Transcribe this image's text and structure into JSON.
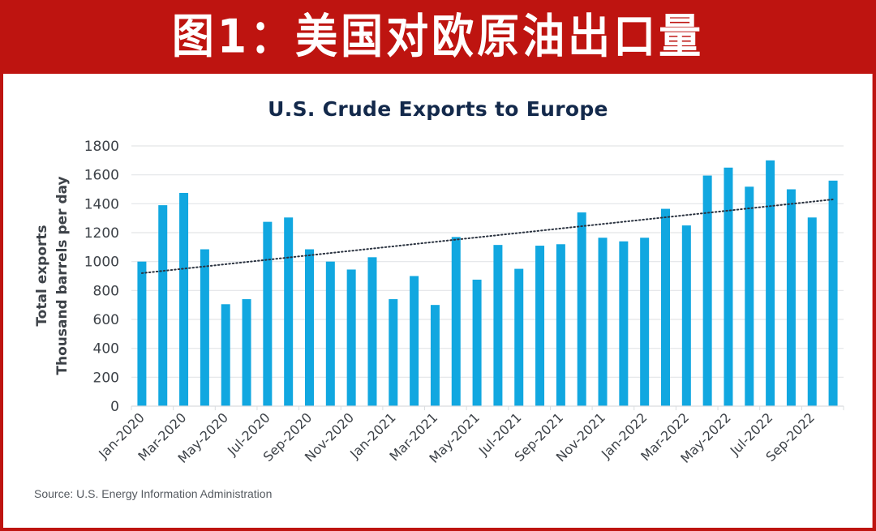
{
  "header": {
    "title": "图1：美国对欧原油出口量",
    "background_color": "#be1410"
  },
  "chart_data": {
    "type": "bar",
    "title": "U.S. Crude Exports to Europe",
    "xlabel": "",
    "ylabel": [
      "Total exports",
      "Thousand barrels per day"
    ],
    "ylim": [
      0,
      1800
    ],
    "yticks": [
      0,
      200,
      400,
      600,
      800,
      1000,
      1200,
      1400,
      1600,
      1800
    ],
    "grid": true,
    "legend": null,
    "bar_color": "#11a7e0",
    "categories": [
      "Jan-2020",
      "Feb-2020",
      "Mar-2020",
      "Apr-2020",
      "May-2020",
      "Jun-2020",
      "Jul-2020",
      "Aug-2020",
      "Sep-2020",
      "Oct-2020",
      "Nov-2020",
      "Dec-2020",
      "Jan-2021",
      "Feb-2021",
      "Mar-2021",
      "Apr-2021",
      "May-2021",
      "Jun-2021",
      "Jul-2021",
      "Aug-2021",
      "Sep-2021",
      "Oct-2021",
      "Nov-2021",
      "Dec-2021",
      "Jan-2022",
      "Feb-2022",
      "Mar-2022",
      "Apr-2022",
      "May-2022",
      "Jun-2022",
      "Jul-2022",
      "Aug-2022",
      "Sep-2022",
      "Oct-2022"
    ],
    "x_tick_labels": [
      "Jan-2020",
      "Mar-2020",
      "May-2020",
      "Jul-2020",
      "Sep-2020",
      "Nov-2020",
      "Jan-2021",
      "Mar-2021",
      "May-2021",
      "Jul-2021",
      "Sep-2021",
      "Nov-2021",
      "Jan-2022",
      "Mar-2022",
      "May-2022",
      "Jul-2022",
      "Sep-2022"
    ],
    "series": [
      {
        "name": "Total exports",
        "values": [
          1000,
          1390,
          1475,
          1085,
          705,
          740,
          1275,
          1305,
          1085,
          1000,
          945,
          1030,
          740,
          900,
          700,
          1170,
          875,
          1115,
          950,
          1110,
          1120,
          1340,
          1165,
          1140,
          1165,
          1365,
          1250,
          1595,
          1650,
          1518,
          1700,
          1500,
          1305,
          1560
        ]
      }
    ],
    "trendline": {
      "style": "dotted",
      "type": "linear",
      "start": {
        "category": "Jan-2020",
        "value": 920
      },
      "end": {
        "category": "Oct-2022",
        "value": 1430
      },
      "color": "#2b3340"
    }
  },
  "source": "Source: U.S. Energy Information Administration"
}
